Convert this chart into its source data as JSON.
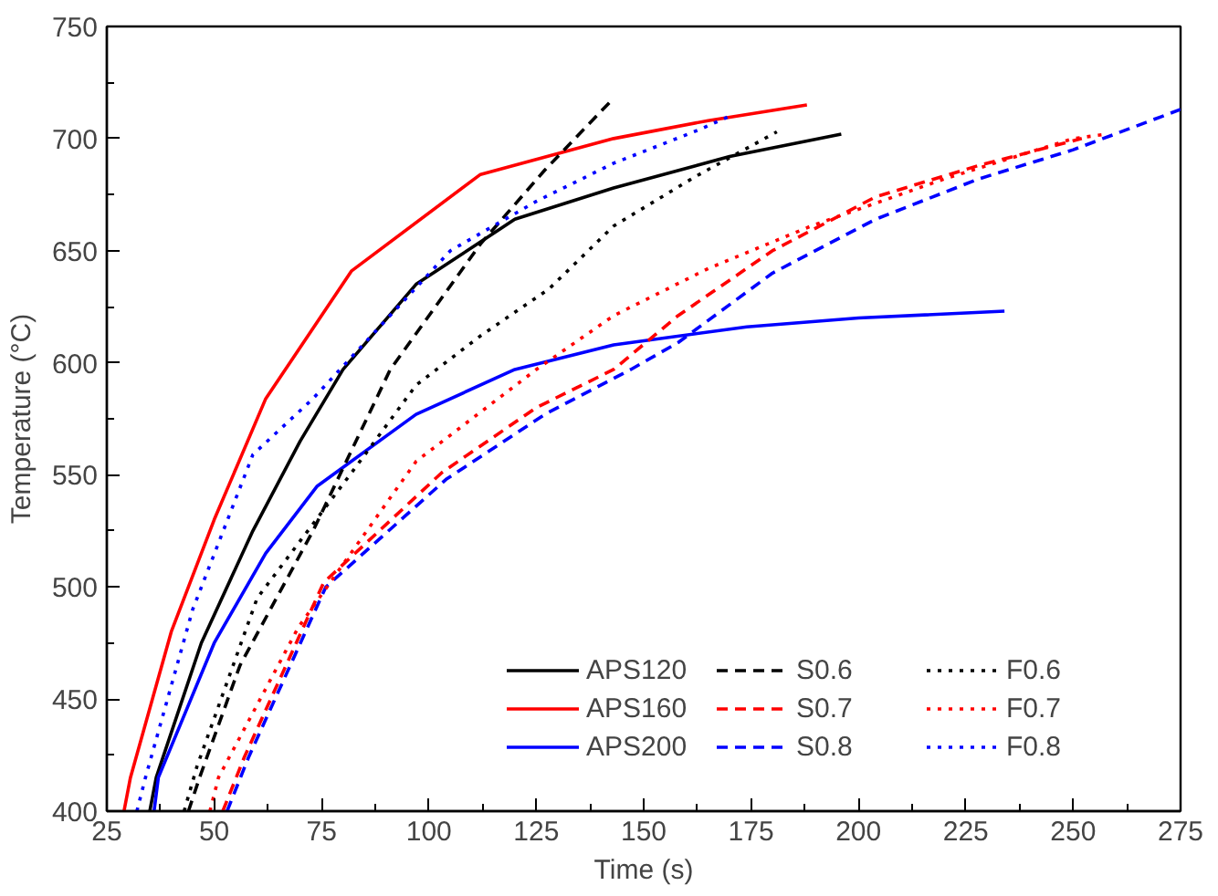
{
  "chart_data": {
    "type": "line",
    "xlabel": "Time (s)",
    "ylabel": "Temperature (°C)",
    "xlim": [
      25,
      275
    ],
    "ylim": [
      400,
      750
    ],
    "xticks": [
      25,
      {
        "value": 37.5,
        "label": null
      },
      50,
      {
        "value": 62.5,
        "label": null
      },
      75,
      {
        "value": 87.5,
        "label": null
      },
      100,
      {
        "value": 112.5,
        "label": null
      },
      125,
      {
        "value": 137.5,
        "label": null
      },
      150,
      {
        "value": 162.5,
        "label": null
      },
      175,
      {
        "value": 187.5,
        "label": null
      },
      200,
      {
        "value": 212.5,
        "label": null
      },
      225,
      {
        "value": 237.5,
        "label": null
      },
      250,
      {
        "value": 262.5,
        "label": null
      },
      275
    ],
    "yticks": [
      400,
      {
        "value": 425,
        "label": null
      },
      450,
      {
        "value": 475,
        "label": null
      },
      500,
      {
        "value": 525,
        "label": null
      },
      550,
      {
        "value": 575,
        "label": null
      },
      600,
      {
        "value": 625,
        "label": null
      },
      650,
      {
        "value": 675,
        "label": null
      },
      700,
      {
        "value": 725,
        "label": null
      },
      750
    ],
    "grid": false,
    "legend": "bottom right",
    "marker": "none",
    "series": [
      {
        "name": "APS120",
        "color": "#000000",
        "line_style": "solid",
        "x": [
          35,
          36.5,
          47,
          59,
          70,
          80,
          97,
          120,
          143,
          170,
          196
        ],
        "values": [
          400,
          415,
          475,
          525,
          565,
          597,
          635,
          664,
          678,
          692,
          702
        ]
      },
      {
        "name": "APS160",
        "color": "#ff0000",
        "line_style": "solid",
        "x": [
          29,
          30.5,
          40,
          50,
          62,
          82,
          112,
          143,
          165,
          188
        ],
        "values": [
          400,
          415,
          480,
          530,
          584,
          641,
          684,
          700,
          708,
          715
        ]
      },
      {
        "name": "APS200",
        "color": "#0000ff",
        "line_style": "solid",
        "x": [
          36,
          37,
          50,
          62,
          74,
          97,
          120,
          143,
          174,
          200,
          234
        ],
        "values": [
          400,
          415,
          475,
          515,
          545,
          577,
          597,
          608,
          616,
          620,
          623
        ]
      },
      {
        "name": "S0.6",
        "color": "#000000",
        "line_style": "dashed",
        "x": [
          44,
          46.6,
          56,
          73,
          91,
          112,
          127,
          142
        ],
        "values": [
          400,
          415,
          465,
          525,
          597,
          653,
          686,
          716
        ]
      },
      {
        "name": "S0.7",
        "color": "#ff0000",
        "line_style": "dashed",
        "x": [
          52,
          57,
          75.5,
          103,
          125,
          143,
          158,
          180,
          204,
          228,
          252
        ],
        "values": [
          400,
          424,
          502,
          551,
          580,
          597,
          621,
          650,
          674,
          688,
          700
        ]
      },
      {
        "name": "S0.8",
        "color": "#0000ff",
        "line_style": "dashed",
        "x": [
          53,
          58,
          76,
          104,
          127,
          147,
          158,
          180,
          204,
          228,
          250,
          275
        ],
        "values": [
          400,
          424,
          500,
          548,
          577,
          597,
          609,
          640,
          664,
          682,
          695,
          713
        ]
      },
      {
        "name": "F0.6",
        "color": "#000000",
        "line_style": "dotted",
        "x": [
          43,
          46,
          60,
          82,
          97,
          112,
          128,
          143,
          162,
          181
        ],
        "values": [
          400,
          420,
          495,
          551,
          590,
          612,
          633,
          661,
          683,
          703
        ]
      },
      {
        "name": "F0.7",
        "color": "#ff0000",
        "line_style": "dotted",
        "x": [
          49,
          51,
          69.6,
          97,
          125,
          143,
          165,
          189,
          220,
          250,
          258
        ],
        "values": [
          400,
          415,
          482,
          556,
          597,
          621,
          642,
          661,
          682,
          700,
          702
        ]
      },
      {
        "name": "F0.8",
        "color": "#0000ff",
        "line_style": "dotted",
        "x": [
          32,
          34,
          45,
          59,
          73,
          105,
          125,
          143,
          163,
          170
        ],
        "values": [
          400,
          415,
          490,
          559,
          584,
          650,
          672,
          689,
          704,
          710
        ]
      }
    ]
  }
}
